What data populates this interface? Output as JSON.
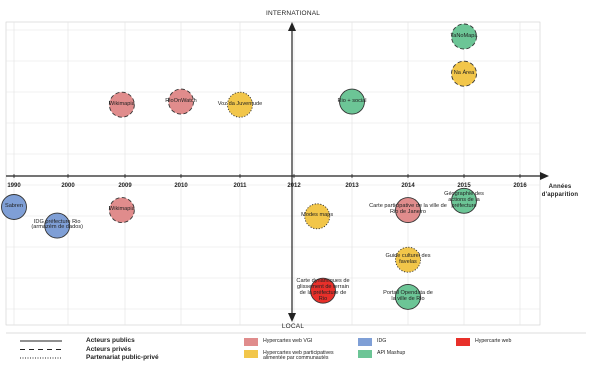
{
  "axes": {
    "top_label": "INTERNATIONAL",
    "bottom_label": "LOCAL",
    "x_title": "Années d'apparition",
    "ticks": [
      1990,
      2000,
      2009,
      2010,
      2011,
      2012,
      2013,
      2014,
      2015,
      2016
    ]
  },
  "colors": {
    "vgi": "#e08c8c",
    "ide": "#7f9fd6",
    "hyperweb": "#e8302a",
    "participative": "#f2c64a",
    "mashup": "#6cc596"
  },
  "items": [
    {
      "label": "Sabren",
      "year": 1990,
      "level": -1,
      "category": "ide",
      "actor": "public"
    },
    {
      "label": "IDG préfecture Rio (armazém de dados)",
      "year": 1998,
      "level": -1.6,
      "category": "ide",
      "actor": "public"
    },
    {
      "label": "Wikimapia",
      "year": 2008.5,
      "level": 2.3,
      "category": "vgi",
      "actor": "privé"
    },
    {
      "label": "Wikimapia",
      "year": 2008.5,
      "level": -1.1,
      "category": "vgi",
      "actor": "privé"
    },
    {
      "label": "RioOnWatch",
      "year": 2010,
      "level": 2.4,
      "category": "vgi",
      "actor": "privé"
    },
    {
      "label": "Voz da Juventude",
      "year": 2011,
      "level": 2.3,
      "category": "participative",
      "actor": "partenariat"
    },
    {
      "label": "Rio + social",
      "year": 2013,
      "level": 2.4,
      "category": "mashup",
      "actor": "public"
    },
    {
      "label": "TaNoMapa",
      "year": 2015,
      "level": 4.5,
      "category": "mashup",
      "actor": "privé"
    },
    {
      "label": "Na Área",
      "year": 2015,
      "level": 3.3,
      "category": "participative",
      "actor": "privé"
    },
    {
      "label": "Modes maps",
      "year": 2012.4,
      "level": -1.3,
      "category": "participative",
      "actor": "partenariat"
    },
    {
      "label": "Carte participative de la ville de Rio de Janeiro",
      "year": 2014,
      "level": -1.1,
      "category": "vgi",
      "actor": "public"
    },
    {
      "label": "Géographie des actions de la préfecture",
      "year": 2015,
      "level": -0.8,
      "category": "mashup",
      "actor": "public"
    },
    {
      "label": "Guide culturel des favelas",
      "year": 2014,
      "level": -2.7,
      "category": "participative",
      "actor": "partenariat"
    },
    {
      "label": "Carte dynamiques de glissement de terrain de la préfecture de Rio",
      "year": 2012.5,
      "level": -3.7,
      "category": "hyperweb",
      "actor": "public"
    },
    {
      "label": "Portail Opendata de la ville de Rio",
      "year": 2014,
      "level": -3.9,
      "category": "mashup",
      "actor": "public"
    }
  ],
  "legend": {
    "actors": [
      {
        "label": "Acteurs publics",
        "style": "solid"
      },
      {
        "label": "Acteurs privés",
        "style": "dashed"
      },
      {
        "label": "Partenariat public-privé",
        "style": "dotted"
      }
    ],
    "categories": [
      {
        "label": "Hypercartes web VGI",
        "key": "vgi"
      },
      {
        "label": "IDG",
        "key": "ide"
      },
      {
        "label": "Hypercarte web",
        "key": "hyperweb"
      },
      {
        "label": "Hypercartes web participatives alimentée par communautés",
        "key": "participative"
      },
      {
        "label": "API Mashup",
        "key": "mashup"
      }
    ]
  }
}
